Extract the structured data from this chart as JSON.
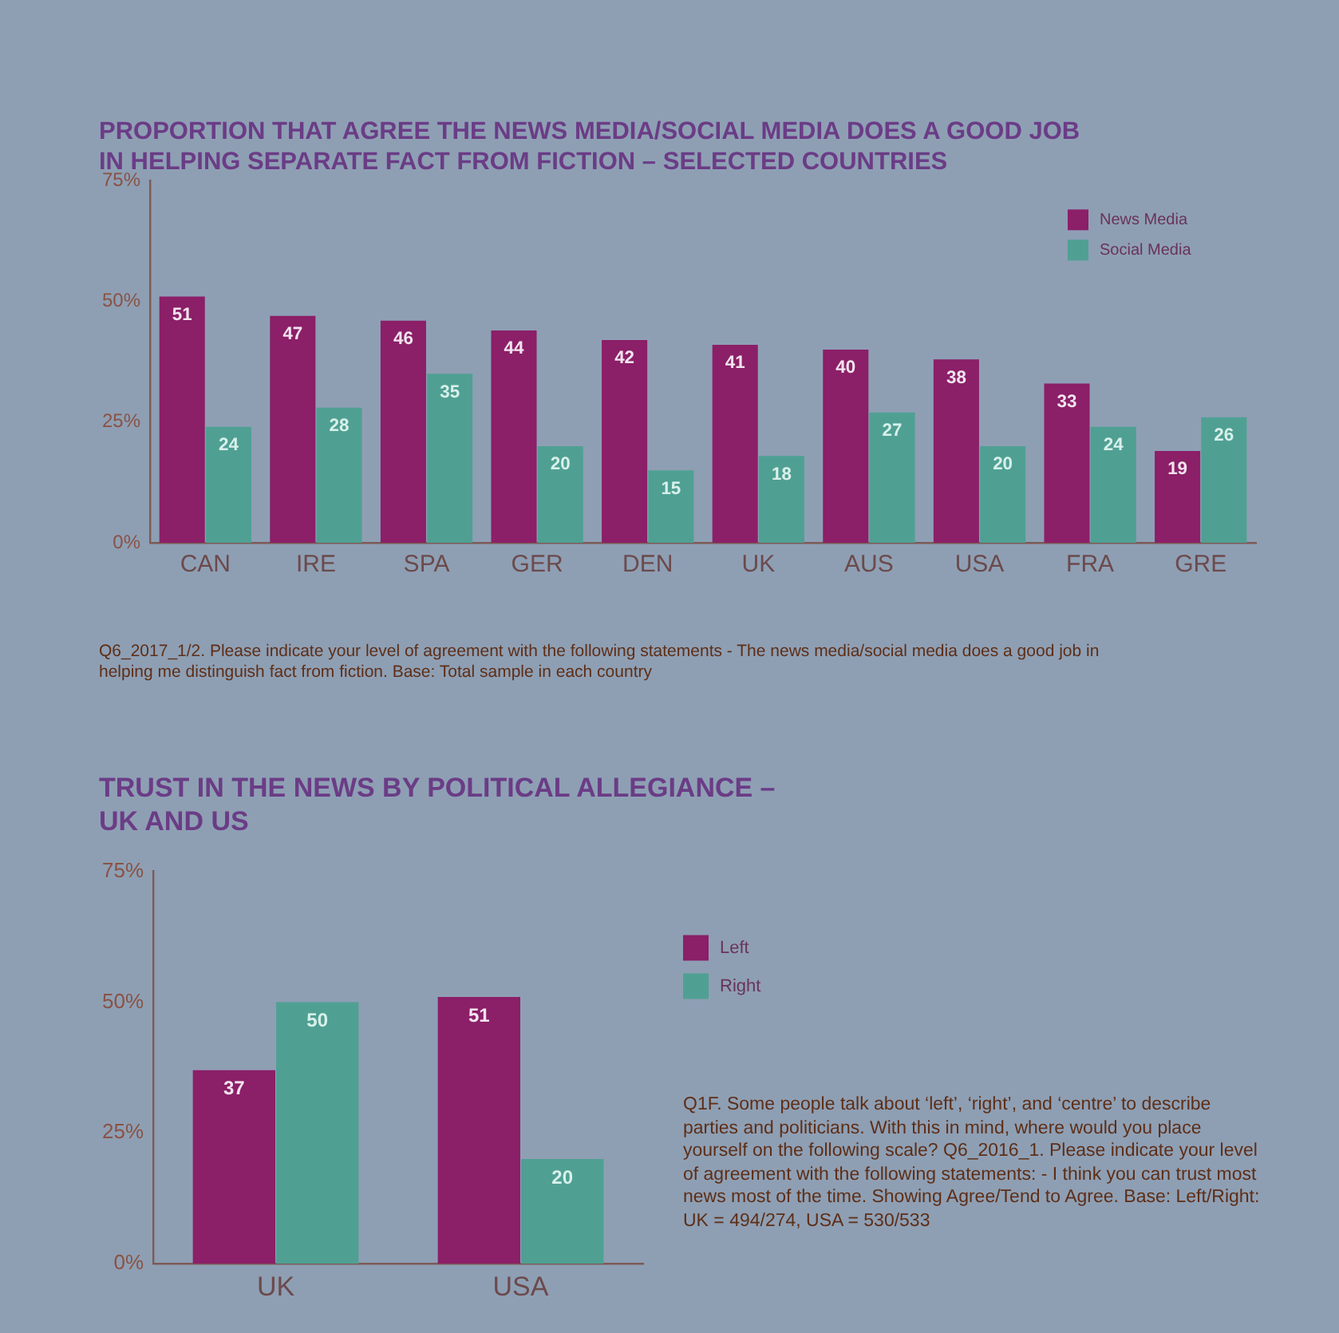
{
  "chart_data": [
    {
      "type": "bar",
      "title": "PROPORTION THAT AGREE THE NEWS MEDIA/SOCIAL MEDIA DOES A GOOD JOB IN HELPING SEPARATE FACT FROM FICTION – SELECTED COUNTRIES",
      "categories": [
        "CAN",
        "IRE",
        "SPA",
        "GER",
        "DEN",
        "UK",
        "AUS",
        "USA",
        "FRA",
        "GRE"
      ],
      "series": [
        {
          "name": "News Media",
          "color": "#8b1f68",
          "values": [
            51,
            47,
            46,
            44,
            42,
            41,
            40,
            38,
            33,
            19
          ]
        },
        {
          "name": "Social Media",
          "color": "#4fa093",
          "values": [
            24,
            28,
            35,
            20,
            15,
            18,
            27,
            20,
            24,
            26
          ]
        }
      ],
      "ylim": [
        0,
        75
      ],
      "yticks": [
        {
          "value": 0,
          "label": "0%"
        },
        {
          "value": 25,
          "label": "25%"
        },
        {
          "value": 50,
          "label": "50%"
        },
        {
          "value": 75,
          "label": "75%"
        }
      ],
      "data_labels": true,
      "legend": "top right",
      "annotations": [
        "Q6_2017_1/2. Please indicate your level of agreement with the following statements - The news media/social media does a good job in helping me distinguish fact from fiction. Base: Total sample in each country"
      ]
    },
    {
      "type": "bar",
      "title": "TRUST IN THE NEWS BY POLITICAL ALLEGIANCE – UK AND US",
      "categories": [
        "UK",
        "USA"
      ],
      "series": [
        {
          "name": "Left",
          "color": "#8b1f68",
          "values": [
            37,
            51
          ]
        },
        {
          "name": "Right",
          "color": "#4fa093",
          "values": [
            50,
            20
          ]
        }
      ],
      "ylim": [
        0,
        75
      ],
      "yticks": [
        {
          "value": 0,
          "label": "0%"
        },
        {
          "value": 25,
          "label": "25%"
        },
        {
          "value": 50,
          "label": "50%"
        },
        {
          "value": 75,
          "label": "75%"
        }
      ],
      "data_labels": true,
      "legend": "right",
      "annotations": [
        "Q1F. Some people talk about ‘left’, ‘right’, and ‘centre’ to describe parties and politicians. With this in mind, where would you place yourself on the following scale? Q6_2016_1. Please indicate your level of agreement with the following statements: - I think you can trust most news most of the time. Showing Agree/Tend to Agree. Base: Left/Right: UK = 494/274, USA = 530/533"
      ]
    }
  ]
}
